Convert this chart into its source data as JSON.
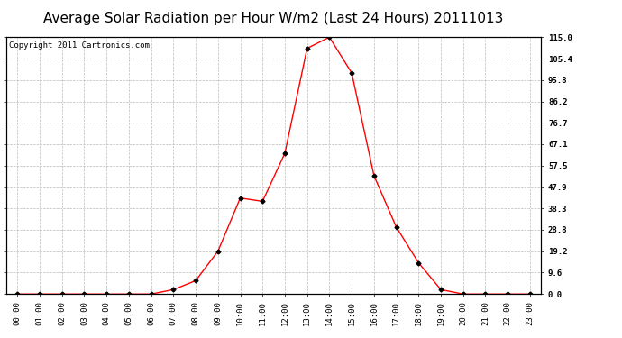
{
  "title": "Average Solar Radiation per Hour W/m2 (Last 24 Hours) 20111013",
  "copyright": "Copyright 2011 Cartronics.com",
  "hours": [
    0,
    1,
    2,
    3,
    4,
    5,
    6,
    7,
    8,
    9,
    10,
    11,
    12,
    13,
    14,
    15,
    16,
    17,
    18,
    19,
    20,
    21,
    22,
    23
  ],
  "x_labels": [
    "00:00",
    "01:00",
    "02:00",
    "03:00",
    "04:00",
    "05:00",
    "06:00",
    "07:00",
    "08:00",
    "09:00",
    "10:00",
    "11:00",
    "12:00",
    "13:00",
    "14:00",
    "15:00",
    "16:00",
    "17:00",
    "18:00",
    "19:00",
    "20:00",
    "21:00",
    "22:00",
    "23:00"
  ],
  "values": [
    0.0,
    0.0,
    0.0,
    0.0,
    0.0,
    0.0,
    0.0,
    2.0,
    6.0,
    19.2,
    43.0,
    41.5,
    63.0,
    110.0,
    115.0,
    99.0,
    53.0,
    30.0,
    14.0,
    2.0,
    0.0,
    0.0,
    0.0,
    0.0
  ],
  "y_ticks": [
    0.0,
    9.6,
    19.2,
    28.8,
    38.3,
    47.9,
    57.5,
    67.1,
    76.7,
    86.2,
    95.8,
    105.4,
    115.0
  ],
  "ylim": [
    0.0,
    115.0
  ],
  "line_color": "red",
  "marker": "D",
  "marker_size": 2.5,
  "marker_color": "black",
  "bg_color": "white",
  "plot_bg_color": "white",
  "grid_color": "#bbbbbb",
  "title_fontsize": 11,
  "copyright_fontsize": 6.5
}
